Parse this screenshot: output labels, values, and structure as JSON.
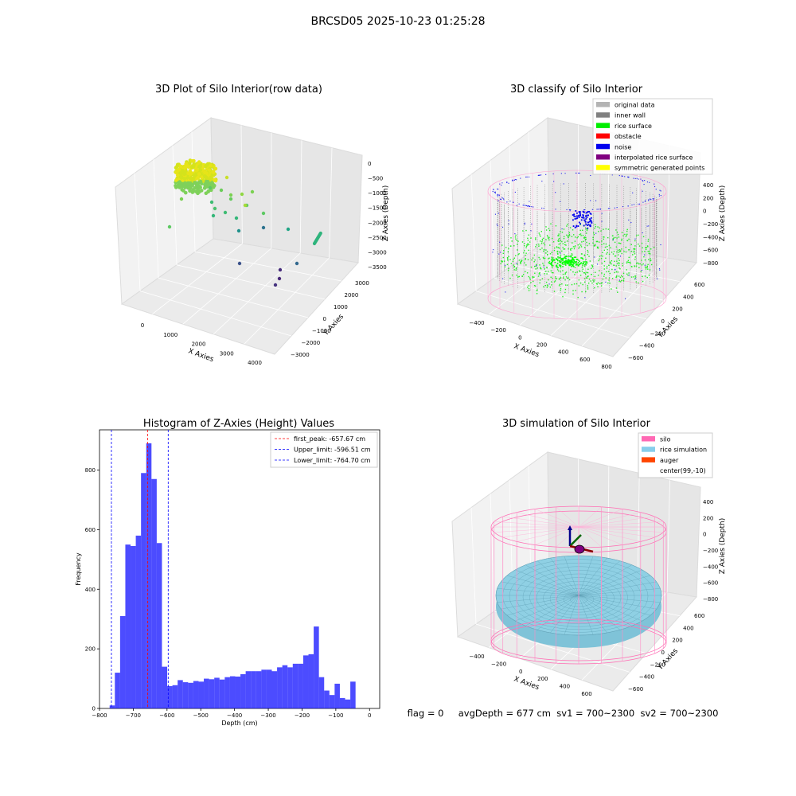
{
  "suptitle": "BRCSD05 2025-10-23 01:25:28",
  "panels": {
    "raw": {
      "title": "3D Plot of Silo Interior(row data)",
      "xlabel": "X Axies",
      "ylabel": "Y Axies",
      "zlabel": "Z Axies (Depth)",
      "x_ticks": [
        "0",
        "1000",
        "2000",
        "3000",
        "4000"
      ],
      "y_ticks": [
        "−3000",
        "−2000",
        "−1000",
        "0",
        "1000",
        "2000",
        "3000"
      ],
      "z_ticks": [
        "0",
        "−500",
        "−1000",
        "−1500",
        "−2000",
        "−2500",
        "−3000",
        "−3500"
      ]
    },
    "classify": {
      "title": "3D classify of Silo Interior",
      "xlabel": "X Axies",
      "ylabel": "Y Axies",
      "zlabel": "Z Axies (Depth)",
      "x_ticks": [
        "−400",
        "−200",
        "0",
        "200",
        "400",
        "600",
        "800"
      ],
      "y_ticks": [
        "−600",
        "−400",
        "−200",
        "0",
        "200",
        "400",
        "600"
      ],
      "z_ticks": [
        "400",
        "200",
        "0",
        "−200",
        "−400",
        "−600",
        "−800"
      ],
      "legend": [
        {
          "label": "original data",
          "color": "#b4b4b4"
        },
        {
          "label": "inner wall",
          "color": "#808080"
        },
        {
          "label": "rice surface",
          "color": "#00ee00"
        },
        {
          "label": "obstacle",
          "color": "#ff0000"
        },
        {
          "label": "noise",
          "color": "#0000ee"
        },
        {
          "label": "interpolated rice surface",
          "color": "#800080"
        },
        {
          "label": "symmetric generated points",
          "color": "#ffff00"
        }
      ]
    },
    "simulation": {
      "title": "3D simulation of Silo Interior",
      "xlabel": "X Axies",
      "ylabel": "Y Axies",
      "zlabel": "Z Axies (Depth)",
      "x_ticks": [
        "−400",
        "−200",
        "0",
        "200",
        "400",
        "600"
      ],
      "y_ticks": [
        "−600",
        "−400",
        "−200",
        "0",
        "200",
        "400",
        "600"
      ],
      "z_ticks": [
        "400",
        "200",
        "0",
        "−200",
        "−400",
        "−600",
        "−800"
      ],
      "legend": [
        {
          "label": "silo",
          "color": "#ff69b4"
        },
        {
          "label": "rice simulation",
          "color": "#87ceeb"
        },
        {
          "label": "auger",
          "color": "#ff4500"
        },
        {
          "label": "center(99,-10)",
          "color": "#ffffff"
        }
      ]
    }
  },
  "status": {
    "text": "flag = 0     avgDepth = 677 cm  sv1 = 700~2300  sv2 = 700~2300"
  },
  "chart_data": {
    "type": "bar",
    "title": "Histogram of Z-Axies (Height) Values",
    "xlabel": "Depth (cm)",
    "ylabel": "Frequency",
    "xlim": [
      -800,
      30
    ],
    "ylim": [
      0,
      935
    ],
    "x_ticks": [
      -800,
      -700,
      -600,
      -500,
      -400,
      -300,
      -200,
      -100,
      0
    ],
    "y_ticks": [
      0,
      200,
      400,
      600,
      800
    ],
    "bar_color": "#0000ff",
    "bin_left": -770,
    "bin_width": 15.5,
    "counts": [
      10,
      120,
      310,
      550,
      545,
      580,
      790,
      890,
      770,
      555,
      140,
      75,
      78,
      95,
      88,
      86,
      92,
      90,
      100,
      98,
      103,
      97,
      105,
      108,
      107,
      115,
      125,
      125,
      125,
      130,
      130,
      125,
      138,
      145,
      138,
      150,
      150,
      178,
      182,
      275,
      105,
      60,
      45,
      83,
      35,
      30,
      90
    ],
    "lines": [
      {
        "value": -657.67,
        "label": "first_peak: -657.67 cm",
        "color": "#ff0000"
      },
      {
        "value": -596.51,
        "label": "Upper_limit: -596.51 cm",
        "color": "#0000ff"
      },
      {
        "value": -764.7,
        "label": "Lower_limit: -764.70 cm",
        "color": "#0000ff"
      }
    ]
  }
}
